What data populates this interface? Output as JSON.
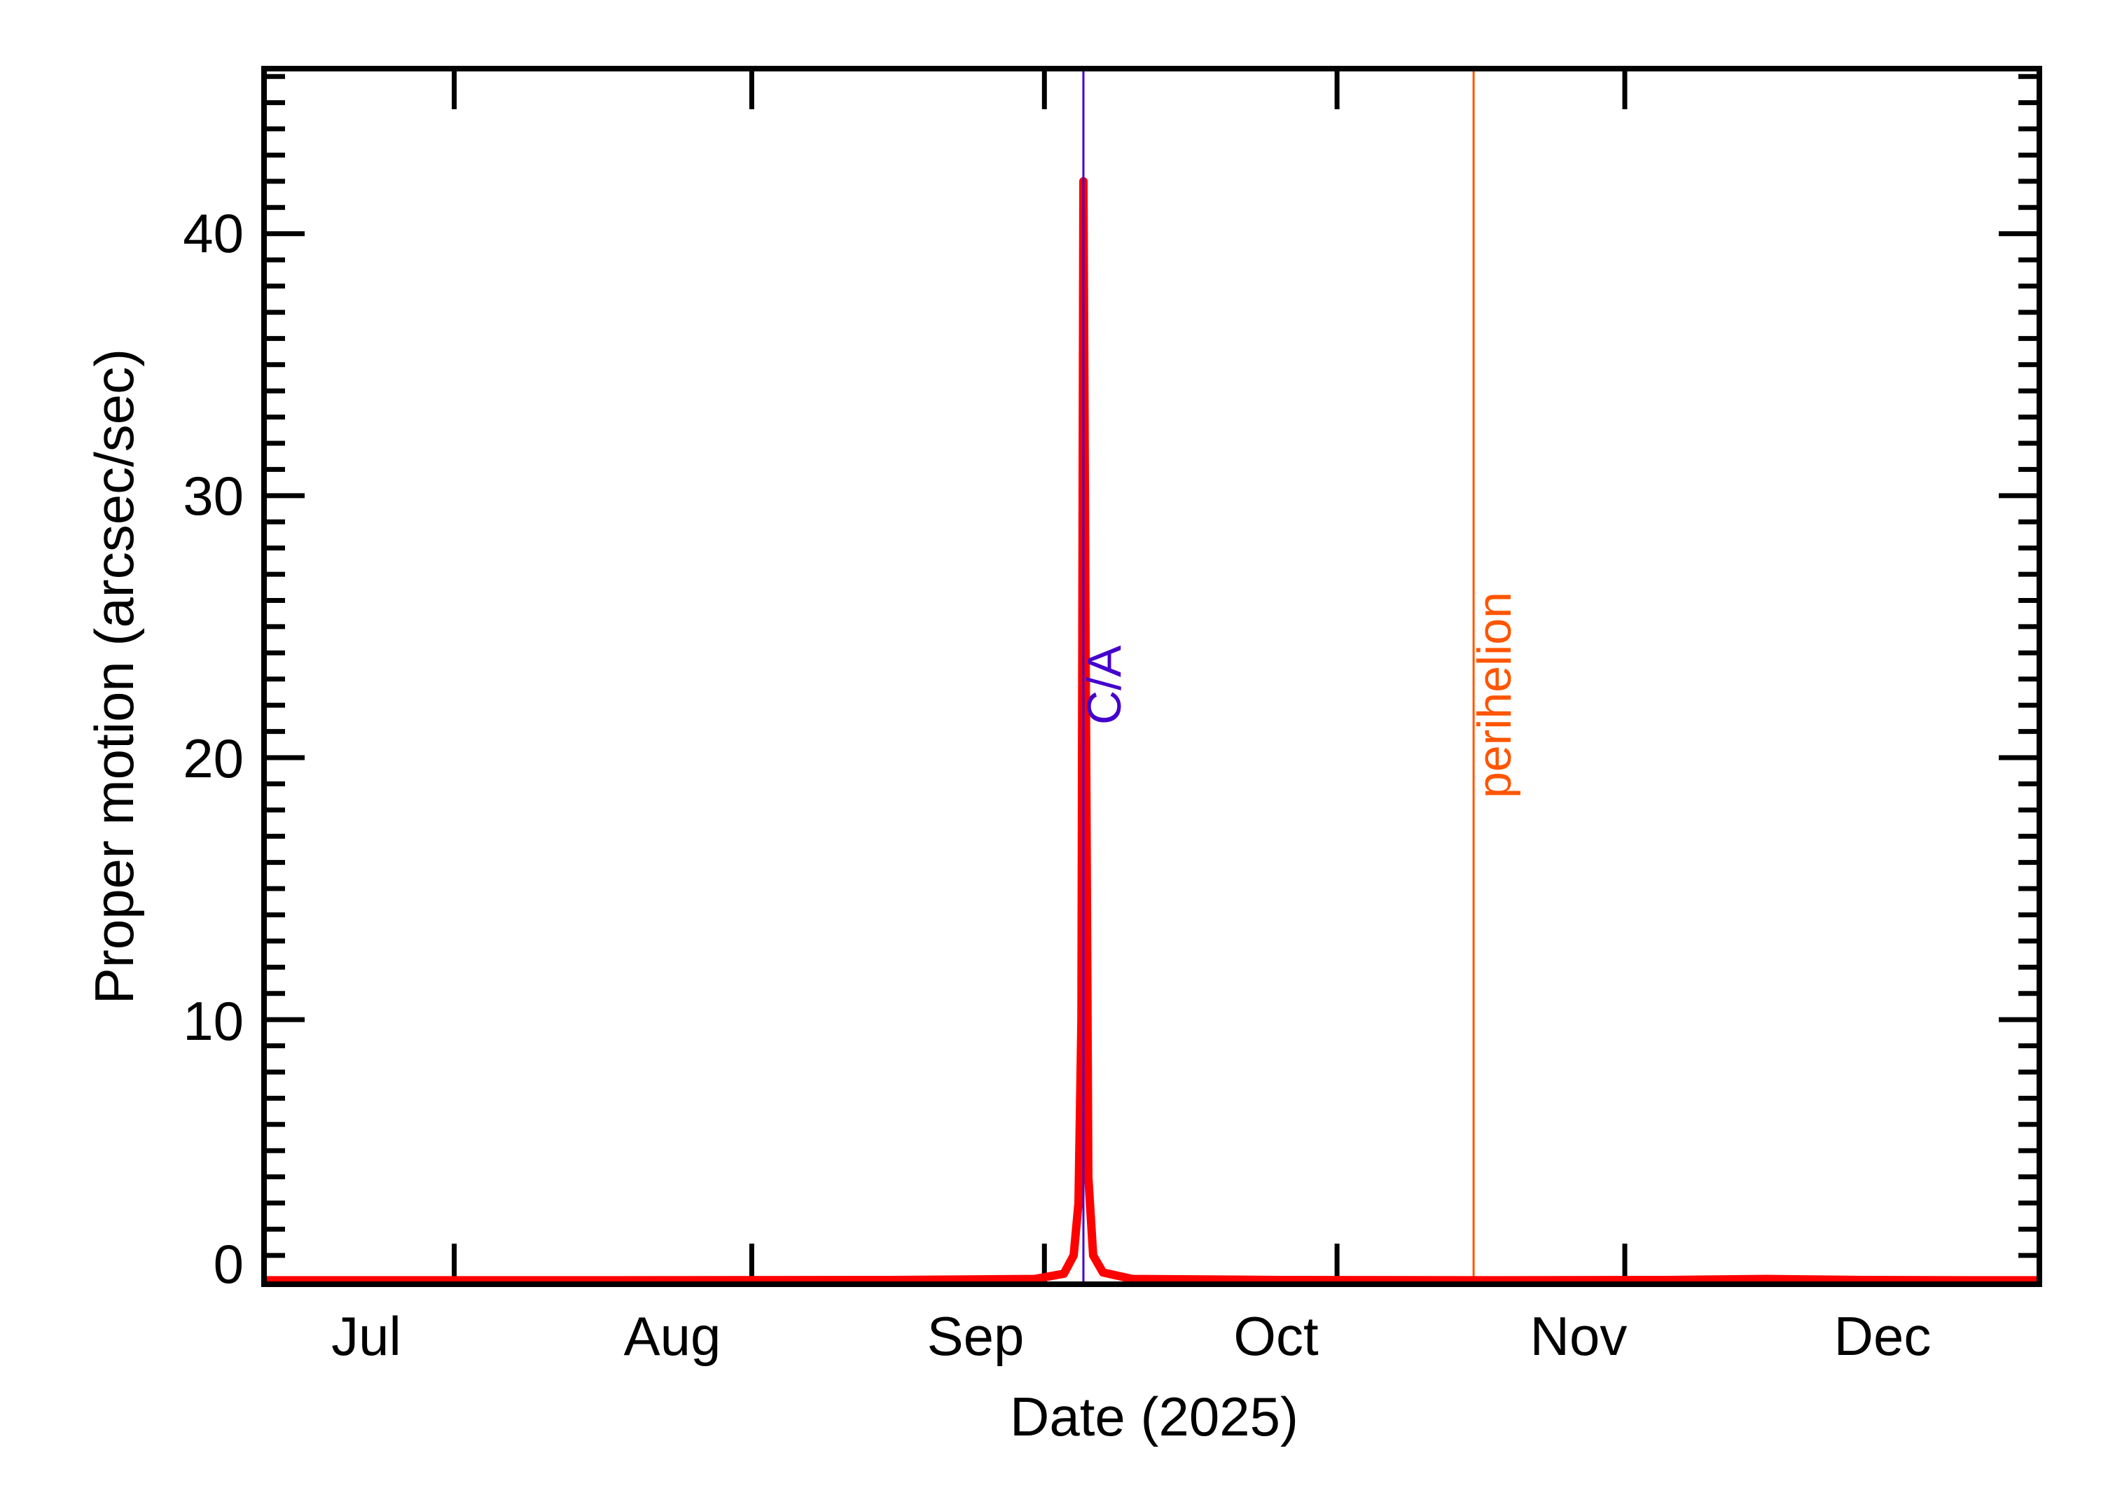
{
  "chart_data": {
    "type": "line",
    "title": "",
    "xlabel": "Date (2025)",
    "ylabel": "Proper motion (arcsec/sec)",
    "x_tick_labels": [
      "Jul",
      "Aug",
      "Sep",
      "Oct",
      "Nov",
      "Dec"
    ],
    "y_tick_labels": [
      "0",
      "10",
      "20",
      "30",
      "40"
    ],
    "ylim": [
      -0.1,
      46.3
    ],
    "xlim_days_from_jul1": [
      -4,
      178
    ],
    "grid": false,
    "legend": null,
    "series": [
      {
        "name": "Proper motion",
        "color": "#ff0000",
        "x_days_from_jul1": [
          -4,
          30,
          60,
          75,
          78,
          79,
          79.5,
          79.8,
          80,
          80.2,
          80.5,
          81,
          82,
          85,
          100,
          120,
          140,
          150,
          160,
          170,
          178
        ],
        "values": [
          0.05,
          0.05,
          0.06,
          0.1,
          0.3,
          1.0,
          3.0,
          10.0,
          42.0,
          26.0,
          4.0,
          1.0,
          0.35,
          0.1,
          0.06,
          0.05,
          0.06,
          0.1,
          0.06,
          0.05,
          0.05
        ]
      }
    ],
    "annotations": [
      {
        "label": "C/A",
        "x_days_from_jul1": 80,
        "color": "#4400cc",
        "type": "vertical-line"
      },
      {
        "label": "perihelion",
        "x_days_from_jul1": 120,
        "color": "#ff5500",
        "type": "vertical-line"
      }
    ],
    "peak": {
      "value": 42.0,
      "near": "Sep 19"
    }
  },
  "labels": {
    "ca": "C/A",
    "perihelion": "perihelion",
    "xlabel": "Date (2025)",
    "ylabel": "Proper motion (arcsec/sec)",
    "months": [
      "Jul",
      "Aug",
      "Sep",
      "Oct",
      "Nov",
      "Dec"
    ],
    "yticks": [
      "0",
      "10",
      "20",
      "30",
      "40"
    ]
  },
  "colors": {
    "curve": "#ff0000",
    "ca": "#4400cc",
    "perihelion": "#ff5500",
    "axis": "#000000"
  }
}
